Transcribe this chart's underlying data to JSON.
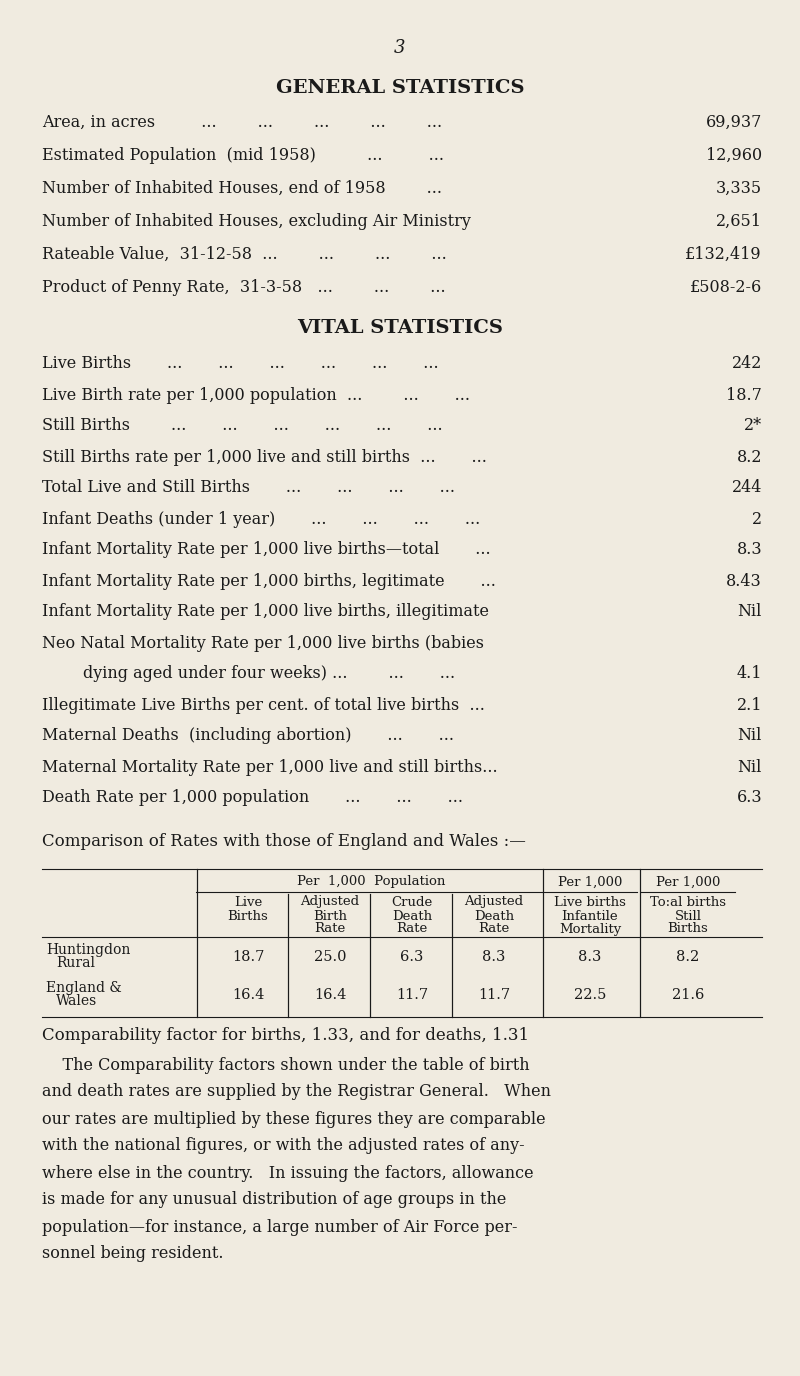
{
  "background_color": "#f0ebe0",
  "text_color": "#1a1a1a",
  "page_number": "3",
  "section1_title": "GENERAL STATISTICS",
  "section2_title": "VITAL STATISTICS",
  "gs_lines": [
    [
      "Area, in acres         ...        ...        ...        ...        ...",
      "69,937"
    ],
    [
      "Estimated Population  (mid 1958)          ...         ...",
      "12,960"
    ],
    [
      "Number of Inhabited Houses, end of 1958        ...",
      "3,335"
    ],
    [
      "Number of Inhabited Houses, excluding Air Ministry",
      "2,651"
    ],
    [
      "Rateable Value,  31-12-58  ...        ...        ...        ...",
      "£132,419"
    ],
    [
      "Product of Penny Rate,  31-3-58   ...        ...        ...",
      "£508-2-6"
    ]
  ],
  "vs_lines": [
    [
      "Live Births       ...       ...       ...       ...       ...       ...",
      "242"
    ],
    [
      "Live Birth rate per 1,000 population  ...        ...       ...",
      "18.7"
    ],
    [
      "Still Births        ...       ...       ...       ...       ...       ...",
      "2*"
    ],
    [
      "Still Births rate per 1,000 live and still births  ...       ...",
      "8.2"
    ],
    [
      "Total Live and Still Births       ...       ...       ...       ...",
      "244"
    ],
    [
      "Infant Deaths (under 1 year)       ...       ...       ...       ...",
      "2"
    ],
    [
      "Infant Mortality Rate per 1,000 live births—total       ...",
      "8.3"
    ],
    [
      "Infant Mortality Rate per 1,000 births, legitimate       ...",
      "8.43"
    ],
    [
      "Infant Mortality Rate per 1,000 live births, illegitimate",
      "Nil"
    ],
    [
      "Neo Natal Mortality Rate per 1,000 live births (babies",
      ""
    ],
    [
      "        dying aged under four weeks) ...        ...       ...",
      "4.1"
    ],
    [
      "Illegitimate Live Births per cent. of total live births  ...",
      "2.1"
    ],
    [
      "Maternal Deaths  (including abortion)       ...       ...",
      "Nil"
    ],
    [
      "Maternal Mortality Rate per 1,000 live and still births...",
      "Nil"
    ],
    [
      "Death Rate per 1,000 population       ...       ...       ...",
      "6.3"
    ]
  ],
  "comparison_header": "Comparison of Rates with those of England and Wales :—",
  "comparability_line": "Comparability factor for births, 1.33, and for deaths, 1.31",
  "paragraph_lines": [
    "    The Comparability factors shown under the table of birth",
    "and death rates are supplied by the Registrar General.   When",
    "our rates are multiplied by these figures they are comparable",
    "with the national figures, or with the adjusted rates of any-",
    "where else in the country.   In issuing the factors, allowance",
    "is made for any unusual distribution of age groups in the",
    "population—for instance, a large number of Air Force per-",
    "sonnel being resident."
  ]
}
